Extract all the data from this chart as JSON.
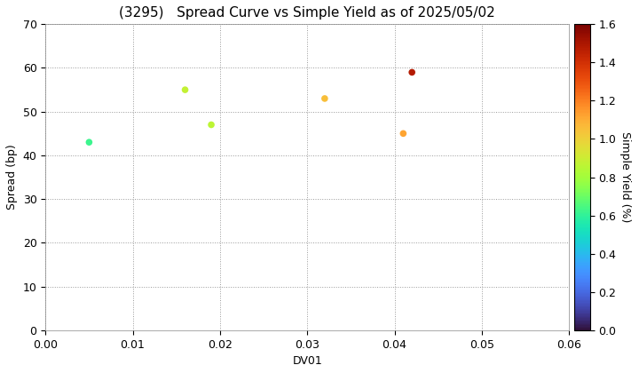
{
  "title": "(3295)   Spread Curve vs Simple Yield as of 2025/05/02",
  "xlabel": "DV01",
  "ylabel": "Spread (bp)",
  "xlim": [
    0.0,
    0.06
  ],
  "ylim": [
    0,
    70
  ],
  "xticks": [
    0.0,
    0.01,
    0.02,
    0.03,
    0.04,
    0.05,
    0.06
  ],
  "yticks": [
    0,
    10,
    20,
    30,
    40,
    50,
    60,
    70
  ],
  "colorbar_label": "Simple Yield (%)",
  "colorbar_vmin": 0.0,
  "colorbar_vmax": 1.6,
  "colorbar_ticks": [
    0.0,
    0.2,
    0.4,
    0.6,
    0.8,
    1.0,
    1.2,
    1.4,
    1.6
  ],
  "points": [
    {
      "dv01": 0.005,
      "spread": 43,
      "simple_yield": 0.62
    },
    {
      "dv01": 0.016,
      "spread": 55,
      "simple_yield": 0.88
    },
    {
      "dv01": 0.019,
      "spread": 47,
      "simple_yield": 0.86
    },
    {
      "dv01": 0.032,
      "spread": 53,
      "simple_yield": 1.05
    },
    {
      "dv01": 0.042,
      "spread": 59,
      "simple_yield": 1.48
    },
    {
      "dv01": 0.041,
      "spread": 45,
      "simple_yield": 1.12
    }
  ],
  "marker_size": 30,
  "background_color": "#ffffff",
  "grid_color": "#999999",
  "grid_linestyle": ":",
  "title_fontsize": 11,
  "axis_fontsize": 9,
  "tick_fontsize": 9,
  "colorbar_fontsize": 9
}
